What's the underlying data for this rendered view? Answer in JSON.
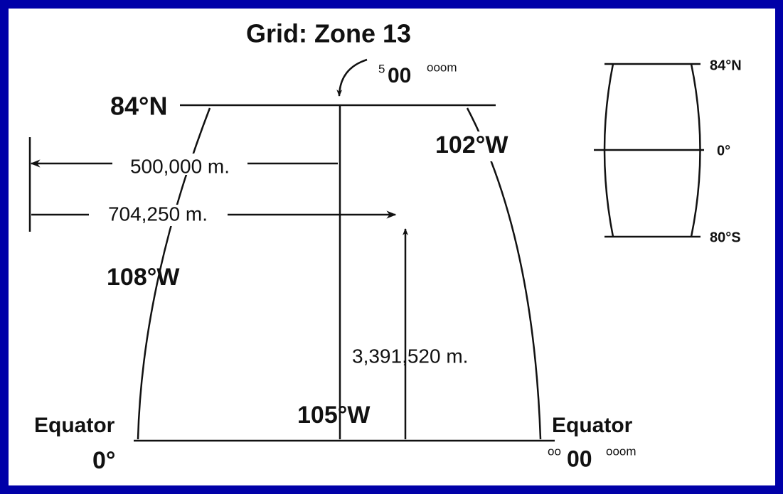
{
  "title": "Grid: Zone 13",
  "top_northing": {
    "prefix": "5",
    "main": "00",
    "suffix": "ooom"
  },
  "bottom_northing": {
    "prefix": "oo",
    "main": "00",
    "suffix": "ooom"
  },
  "labels": {
    "north_limit": "84°N",
    "east_meridian": "102°W",
    "west_meridian": "108°W",
    "central_meridian": "105°W",
    "false_easting": "500,000 m.",
    "easting": "704,250 m.",
    "northing": "3,391,520 m.",
    "equator_left": "Equator",
    "equator_left_lat": "0°",
    "equator_right": "Equator"
  },
  "inset": {
    "north": "84°N",
    "equator": "0°",
    "south": "80°S"
  }
}
